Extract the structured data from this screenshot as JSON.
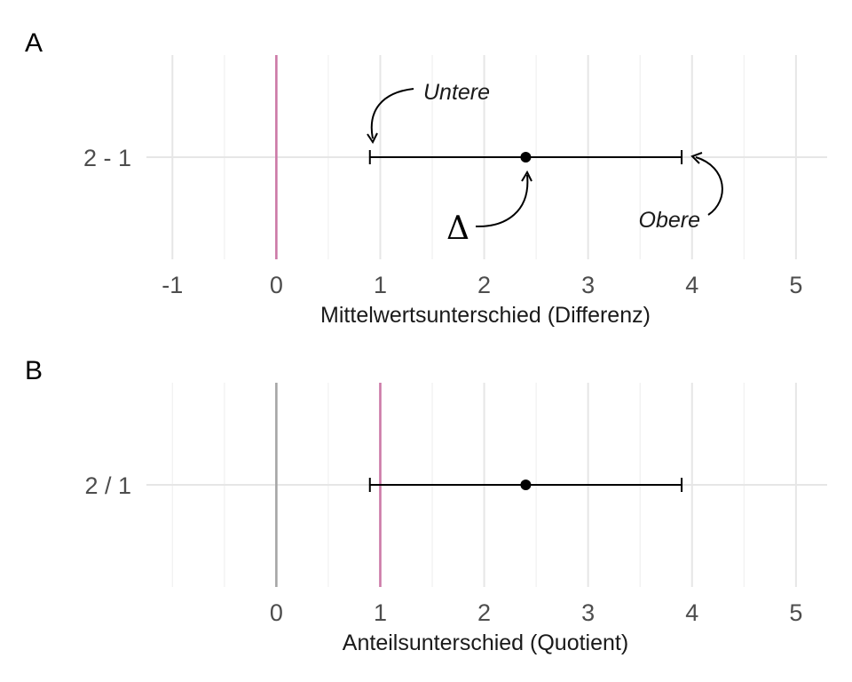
{
  "chart_data": [
    {
      "type": "errorbar",
      "panel_tag": "A",
      "xlabel": "Mittelwertsunterschied (Differenz)",
      "xlim": [
        -1.25,
        5.3
      ],
      "major_ticks": [
        -1,
        0,
        1,
        2,
        3,
        4,
        5
      ],
      "tick_labels": [
        "-1",
        "0",
        "1",
        "2",
        "3",
        "4",
        "5"
      ],
      "minor_ticks": [
        -0.5,
        0.5,
        1.5,
        2.5,
        3.5,
        4.5
      ],
      "reference_lines": [
        {
          "x": 0,
          "color": "#cc79a7"
        }
      ],
      "rows": [
        {
          "label": "2 - 1",
          "estimate": 2.4,
          "lower": 0.9,
          "upper": 3.9
        }
      ],
      "annotations": {
        "lower": "Untere",
        "upper": "Obere",
        "estimate": "Δ"
      },
      "grid": true
    },
    {
      "type": "errorbar",
      "panel_tag": "B",
      "xlabel": "Anteilsunterschied (Quotient)",
      "xlim": [
        -1.25,
        5.3
      ],
      "major_ticks": [
        0,
        1,
        2,
        3,
        4,
        5
      ],
      "tick_labels": [
        "0",
        "1",
        "2",
        "3",
        "4",
        "5"
      ],
      "minor_ticks": [
        -1,
        -0.5,
        0.5,
        1.5,
        2.5,
        3.5,
        4.5
      ],
      "reference_lines": [
        {
          "x": 0,
          "color": "#a6a6a6"
        },
        {
          "x": 1,
          "color": "#cc79a7"
        }
      ],
      "rows": [
        {
          "label": "2 / 1",
          "estimate": 2.4,
          "lower": 0.9,
          "upper": 3.9
        }
      ],
      "grid": true
    }
  ]
}
